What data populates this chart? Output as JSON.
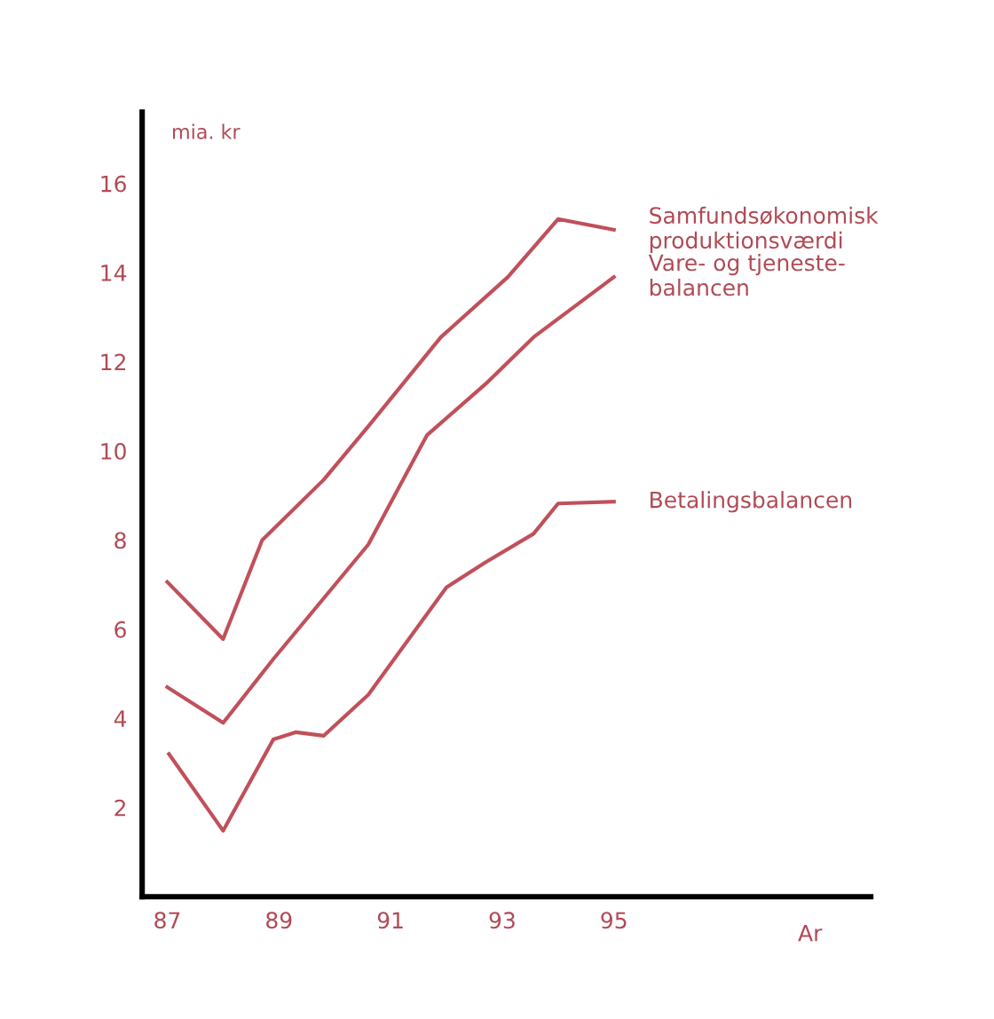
{
  "chart_data": {
    "type": "line",
    "ylabel": "mia. kr",
    "xlabel": "Ar",
    "xlim": [
      86.55,
      99.6
    ],
    "xticks": [
      87,
      89,
      91,
      93,
      95
    ],
    "ylim": [
      0,
      17.6
    ],
    "yticks": [
      2,
      4,
      6,
      8,
      10,
      12,
      14,
      16
    ],
    "grid": false,
    "marker": "none",
    "line_style": "solid",
    "series": [
      {
        "name": "Samfundsøkonomisk\nproduktionsværdi",
        "color": "#c0505a",
        "x": [
          87.0,
          88.0,
          88.7,
          89.8,
          90.6,
          91.9,
          93.1,
          94.0,
          95.0
        ],
        "values": [
          7.06,
          5.78,
          8.0,
          9.35,
          10.55,
          12.55,
          13.9,
          15.2,
          14.96
        ]
      },
      {
        "name": "Vare- og tjeneste-\nbalancen",
        "color": "#c0505a",
        "x": [
          87.0,
          88.0,
          88.9,
          90.6,
          91.65,
          92.7,
          93.56,
          95.0
        ],
        "values": [
          4.7,
          3.9,
          5.33,
          7.9,
          10.35,
          11.5,
          12.55,
          13.9
        ]
      },
      {
        "name": "Betalingsbalancen",
        "color": "#c0505a",
        "x": [
          87.03,
          88.0,
          88.9,
          89.3,
          89.8,
          90.6,
          92.0,
          92.7,
          93.56,
          94.0,
          95.0
        ],
        "values": [
          3.2,
          1.48,
          3.53,
          3.69,
          3.61,
          4.53,
          6.94,
          7.5,
          8.14,
          8.82,
          8.86
        ]
      }
    ]
  }
}
